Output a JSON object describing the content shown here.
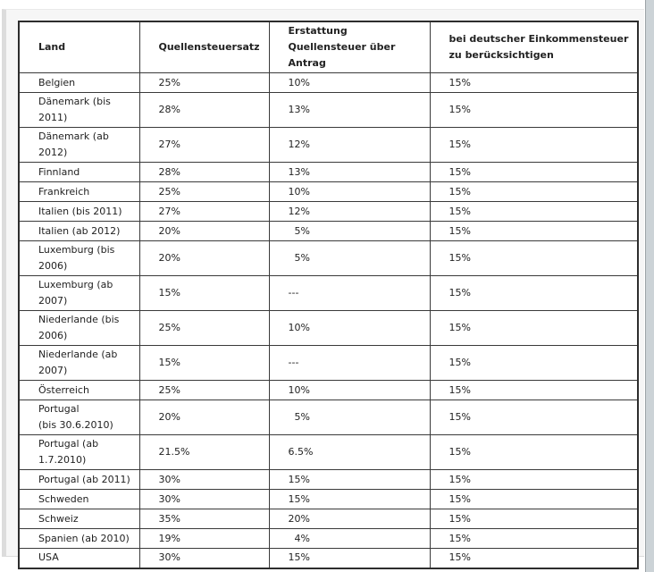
{
  "colors": {
    "page_background": "#ffffff",
    "panel_background": "#f6f6f6",
    "panel_edge": "#dcdcdc",
    "table_border": "#2d2d2d",
    "text": "#222222",
    "scrollbar_track": "#ccd3d7"
  },
  "table": {
    "headers": [
      "Land",
      "Quellensteuersatz",
      "Erstattung\nQuellensteuer über\nAntrag",
      "bei deutscher Einkommensteuer\nzu berücksichtigen"
    ],
    "rows": [
      {
        "land": "Belgien",
        "quellensteuersatz": "25%",
        "erstattung": "10%",
        "anrechnung": "15%"
      },
      {
        "land": "Dänemark (bis\n2011)",
        "quellensteuersatz": "28%",
        "erstattung": "13%",
        "anrechnung": "15%"
      },
      {
        "land": "Dänemark (ab\n2012)",
        "quellensteuersatz": "27%",
        "erstattung": "12%",
        "anrechnung": "15%"
      },
      {
        "land": "Finnland",
        "quellensteuersatz": "28%",
        "erstattung": "13%",
        "anrechnung": "15%"
      },
      {
        "land": "Frankreich",
        "quellensteuersatz": "25%",
        "erstattung": "10%",
        "anrechnung": "15%"
      },
      {
        "land": "Italien (bis 2011)",
        "quellensteuersatz": "27%",
        "erstattung": "12%",
        "anrechnung": "15%"
      },
      {
        "land": "Italien (ab 2012)",
        "quellensteuersatz": "20%",
        "erstattung": "  5%",
        "anrechnung": "15%"
      },
      {
        "land": "Luxemburg (bis\n2006)",
        "quellensteuersatz": "20%",
        "erstattung": "  5%",
        "anrechnung": "15%"
      },
      {
        "land": "Luxemburg (ab\n2007)",
        "quellensteuersatz": "15%",
        "erstattung": "---",
        "anrechnung": "15%"
      },
      {
        "land": "Niederlande (bis\n2006)",
        "quellensteuersatz": "25%",
        "erstattung": "10%",
        "anrechnung": "15%"
      },
      {
        "land": "Niederlande (ab\n2007)",
        "quellensteuersatz": "15%",
        "erstattung": "---",
        "anrechnung": "15%"
      },
      {
        "land": "Österreich",
        "quellensteuersatz": "25%",
        "erstattung": "10%",
        "anrechnung": "15%"
      },
      {
        "land": "Portugal\n(bis 30.6.2010)",
        "quellensteuersatz": "20%",
        "erstattung": "  5%",
        "anrechnung": "15%"
      },
      {
        "land": "Portugal (ab\n1.7.2010)",
        "quellensteuersatz": "21.5%",
        "erstattung": "6.5%",
        "anrechnung": "15%"
      },
      {
        "land": "Portugal (ab 2011)",
        "quellensteuersatz": "30%",
        "erstattung": "15%",
        "anrechnung": "15%"
      },
      {
        "land": "Schweden",
        "quellensteuersatz": "30%",
        "erstattung": "15%",
        "anrechnung": "15%"
      },
      {
        "land": "Schweiz",
        "quellensteuersatz": "35%",
        "erstattung": "20%",
        "anrechnung": "15%"
      },
      {
        "land": "Spanien (ab 2010)",
        "quellensteuersatz": "19%",
        "erstattung": "  4%",
        "anrechnung": "15%"
      },
      {
        "land": "USA",
        "quellensteuersatz": "30%",
        "erstattung": "15%",
        "anrechnung": "15%"
      }
    ]
  }
}
